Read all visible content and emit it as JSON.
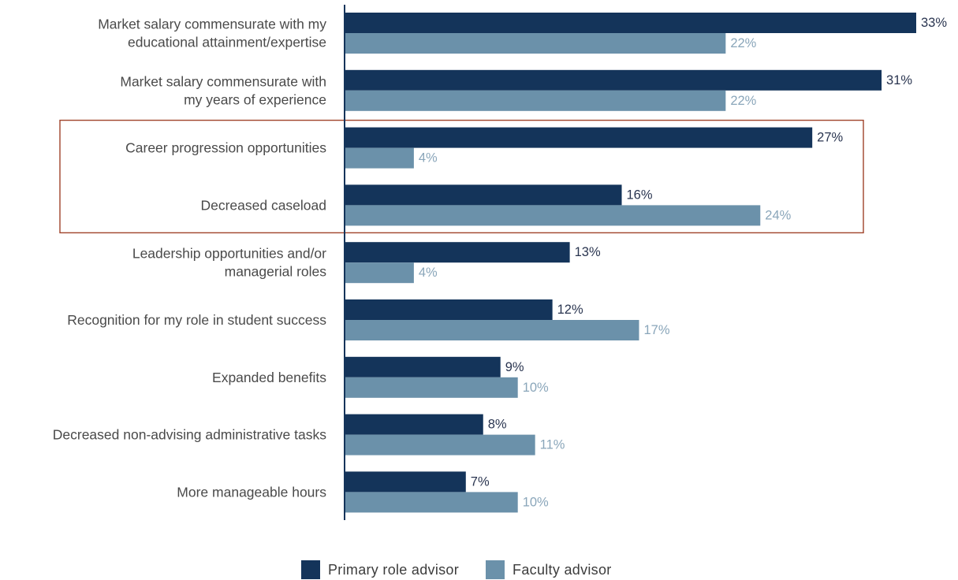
{
  "chart_data": {
    "type": "bar",
    "orientation": "horizontal",
    "categories": [
      [
        "Market salary commensurate with my",
        "educational attainment/expertise"
      ],
      [
        "Market salary commensurate with",
        "my years of experience"
      ],
      [
        "Career progression opportunities"
      ],
      [
        "Decreased caseload"
      ],
      [
        "Leadership opportunities and/or",
        "managerial roles"
      ],
      [
        "Recognition for my role in student success"
      ],
      [
        "Expanded benefits"
      ],
      [
        "Decreased non-advising administrative tasks"
      ],
      [
        "More manageable hours"
      ]
    ],
    "series": [
      {
        "name": "Primary role advisor",
        "color": "#14345a",
        "label_color": "#2a3550",
        "values": [
          33,
          31,
          27,
          16,
          13,
          12,
          9,
          8,
          7
        ],
        "labels": [
          "33%",
          "31%",
          "27%",
          "16%",
          "13%",
          "12%",
          "9%",
          "8%",
          "7%"
        ]
      },
      {
        "name": "Faculty advisor",
        "color": "#6b91aa",
        "label_color": "#8aa6ba",
        "values": [
          22,
          22,
          4,
          24,
          4,
          17,
          10,
          11,
          10
        ],
        "labels": [
          "22%",
          "22%",
          "4%",
          "24%",
          "4%",
          "17%",
          "10%",
          "11%",
          "10%"
        ]
      }
    ],
    "highlight": {
      "categories": [
        2,
        3
      ],
      "color": "#a0432a"
    },
    "xlim": [
      0,
      33
    ],
    "axis_color": "#14345a",
    "legend_position": "bottom-center",
    "grid": false,
    "title": "",
    "xlabel": "",
    "ylabel": ""
  }
}
